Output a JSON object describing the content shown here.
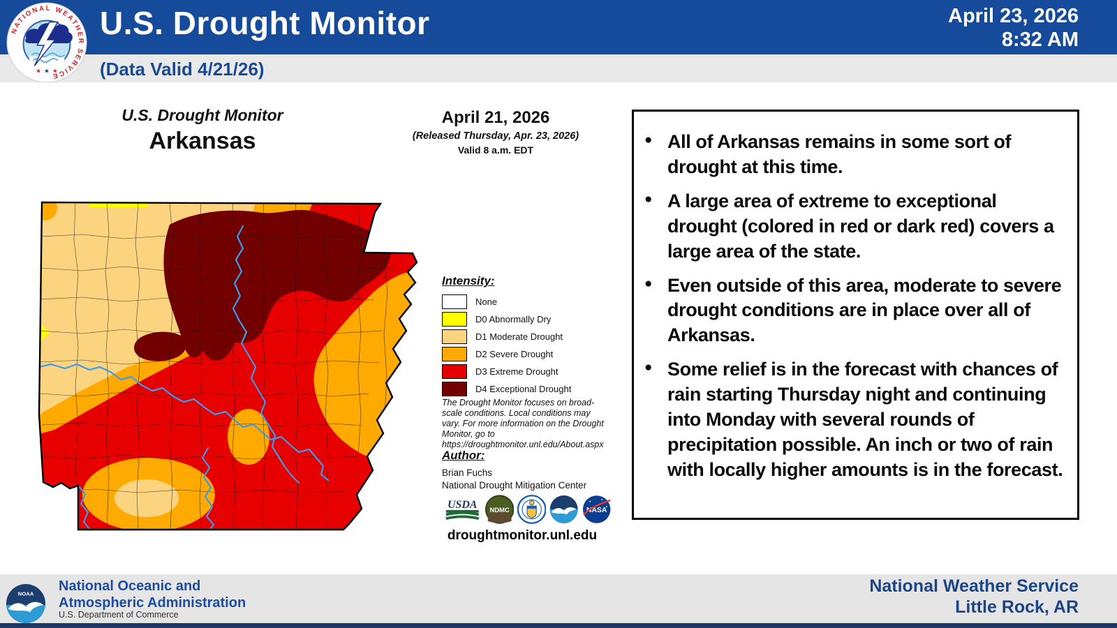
{
  "header": {
    "title": "U.S. Drought Monitor",
    "data_valid": "(Data Valid 4/21/26)",
    "date": "April 23, 2026",
    "time": "8:32 AM",
    "nws_ring_text": "NATIONAL WEATHER SERVICE"
  },
  "map_panel": {
    "title_line1": "U.S. Drought Monitor",
    "title_line2": "Arkansas",
    "date_title": "April 21, 2026",
    "released": "(Released Thursday, Apr. 23, 2026)",
    "valid": "Valid 8 a.m. EDT"
  },
  "legend": {
    "heading": "Intensity:",
    "items": [
      {
        "label": "None",
        "color": "#FFFFFF"
      },
      {
        "label": "D0 Abnormally Dry",
        "color": "#FFFF00"
      },
      {
        "label": "D1 Moderate Drought",
        "color": "#FCD37F"
      },
      {
        "label": "D2 Severe Drought",
        "color": "#FFAA00"
      },
      {
        "label": "D3 Extreme Drought",
        "color": "#E60000"
      },
      {
        "label": "D4 Exceptional Drought",
        "color": "#730000"
      }
    ]
  },
  "disclaimer": "The Drought Monitor focuses on broad-scale conditions. Local conditions may vary. For more information on the Drought Monitor, go to https://droughtmonitor.unl.edu/About.aspx",
  "author": {
    "heading": "Author:",
    "name": "Brian Fuchs",
    "org": "National Drought Mitigation Center"
  },
  "logos": {
    "usda": "USDA",
    "ndmc": "NDMC",
    "noaa": "NOAA",
    "nasa": "NASA"
  },
  "website": "droughtmonitor.unl.edu",
  "bullets": [
    "All of Arkansas remains in some sort of drought at this time.",
    "A large area of extreme to exceptional drought (colored in red or dark red) covers a large area of the state.",
    "Even outside of this area, moderate to severe drought conditions are in place over all of Arkansas.",
    "Some relief is in the forecast with chances of rain starting Thursday night and continuing into Monday with several rounds of precipitation possible. An inch or two of rain with locally higher amounts is in the forecast."
  ],
  "footer": {
    "agency_line1": "National Oceanic and",
    "agency_line2": "Atmospheric Administration",
    "dept": "U.S. Department of Commerce",
    "office_line1": "National Weather Service",
    "office_line2": "Little Rock, AR",
    "noaa_badge": "NOAA"
  },
  "map_colors": {
    "none": "#FFFFFF",
    "d0": "#FFFF00",
    "d1": "#FCD37F",
    "d2": "#FFAA00",
    "d3": "#E60000",
    "d4": "#730000",
    "river": "#3D9BE9"
  }
}
